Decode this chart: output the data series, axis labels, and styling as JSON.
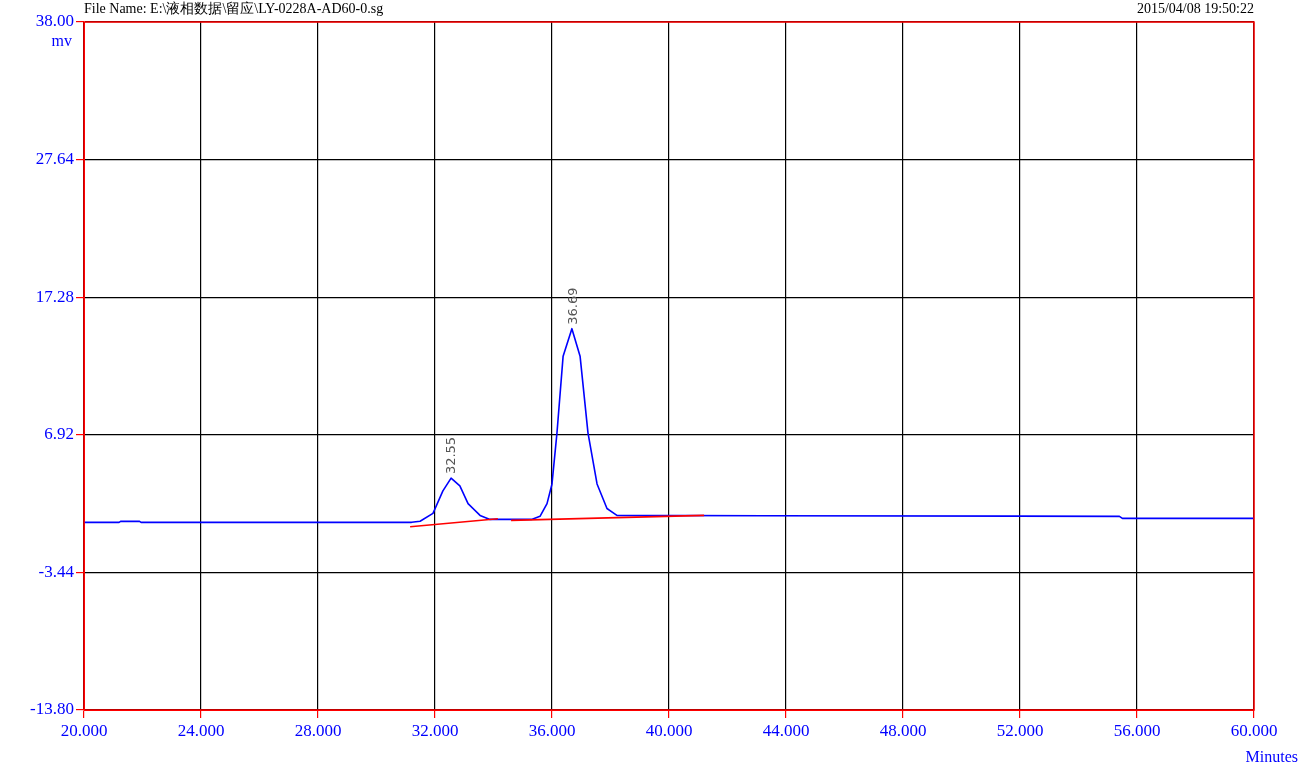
{
  "chart_data": {
    "type": "line",
    "title": "File Name: E:\\液相数据\\留应\\LY-0228A-AD60-0.sg",
    "subtitle": "2015/04/08 19:50:22",
    "xlabel": "Minutes",
    "ylabel": "mv",
    "xlim": [
      20,
      60
    ],
    "xticks": [
      {
        "value": 20,
        "label": "20.000"
      },
      {
        "value": 24,
        "label": "24.000"
      },
      {
        "value": 28,
        "label": "28.000"
      },
      {
        "value": 32,
        "label": "32.000"
      },
      {
        "value": 36,
        "label": "36.000"
      },
      {
        "value": 40,
        "label": "40.000"
      },
      {
        "value": 44,
        "label": "44.000"
      },
      {
        "value": 48,
        "label": "48.000"
      },
      {
        "value": 52,
        "label": "52.000"
      },
      {
        "value": 56,
        "label": "56.000"
      },
      {
        "value": 60,
        "label": "60.000"
      }
    ],
    "ylim": [
      -13.8,
      38
    ],
    "yticks": [
      {
        "value": -13.8,
        "label": "-13.80"
      },
      {
        "value": -3.44,
        "label": "-3.44"
      },
      {
        "value": 6.92,
        "label": "6.92"
      },
      {
        "value": 17.28,
        "label": "17.28"
      },
      {
        "value": 27.64,
        "label": "27.64"
      },
      {
        "value": 38,
        "label": "38.00"
      }
    ],
    "grid": true,
    "legend": false,
    "marker": "none",
    "line_style": "solid",
    "series": [
      {
        "color": "#0000ff",
        "x": [
          20,
          21.2,
          21.25,
          21.9,
          21.95,
          31.2,
          31.49,
          31.93,
          32.27,
          32.55,
          32.85,
          33.13,
          33.54,
          33.88,
          35.3,
          35.59,
          35.83,
          36.0,
          36.17,
          36.38,
          36.68,
          36.96,
          37.23,
          37.54,
          37.88,
          38.22,
          55.4,
          55.5,
          60
        ],
        "values": [
          0.33,
          0.33,
          0.4,
          0.4,
          0.33,
          0.33,
          0.41,
          1.0,
          2.7,
          3.66,
          3.07,
          1.74,
          0.85,
          0.55,
          0.55,
          0.78,
          1.74,
          3.22,
          7.07,
          12.84,
          14.91,
          12.84,
          7.07,
          3.22,
          1.37,
          0.85,
          0.78,
          0.63,
          0.63
        ]
      },
      {
        "color": "#ff0000",
        "x": [
          31.15,
          34.15
        ],
        "values": [
          0.0,
          0.6
        ]
      },
      {
        "color": "#ff0000",
        "x": [
          34.6,
          41.2
        ],
        "values": [
          0.48,
          0.85
        ]
      }
    ],
    "annotations": [
      {
        "text": "32.55",
        "x": 32.55,
        "y": 3.66
      },
      {
        "text": "36.69",
        "x": 36.69,
        "y": 14.91
      }
    ]
  }
}
